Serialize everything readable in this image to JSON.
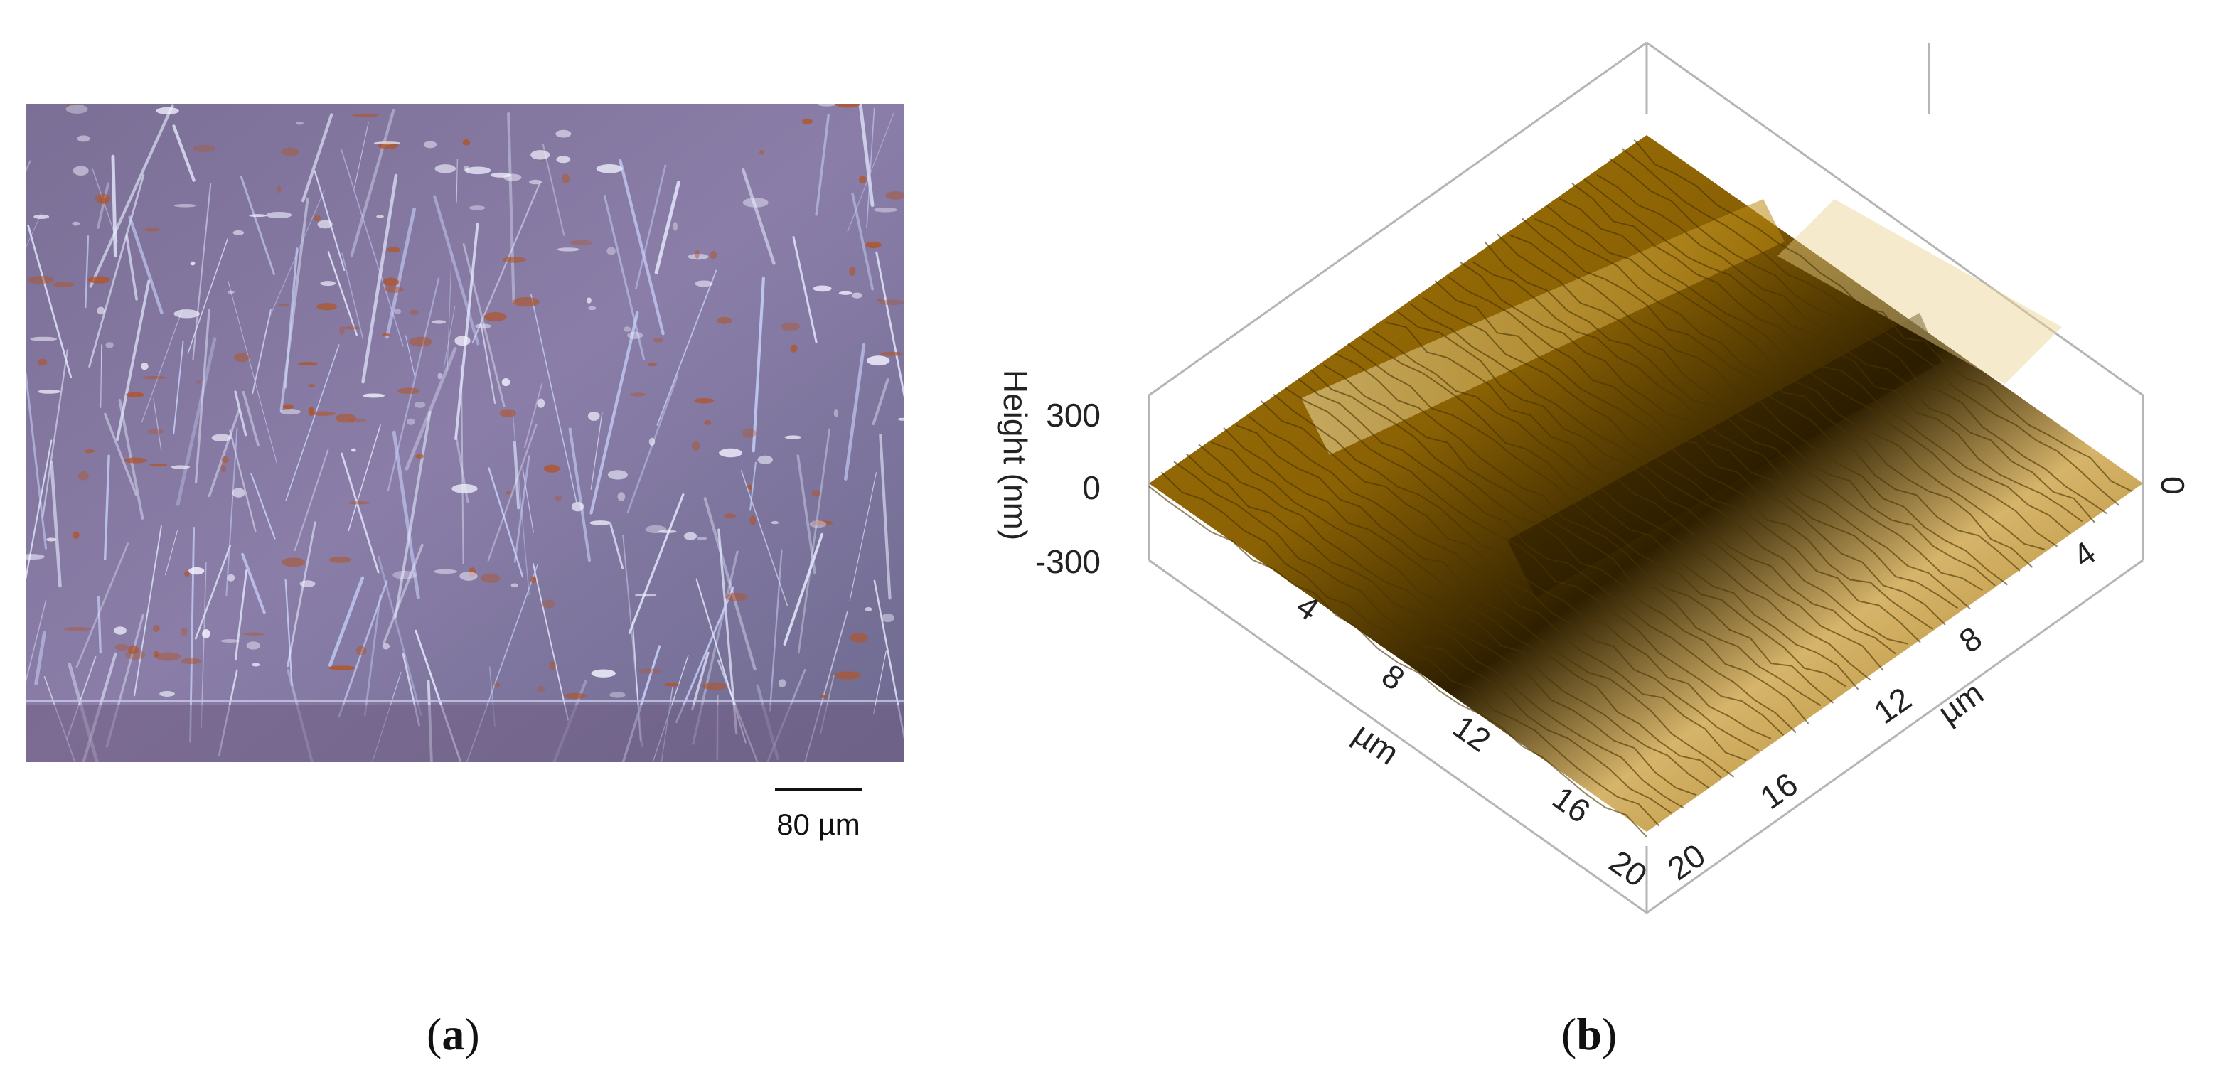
{
  "panel_a": {
    "caption_open": "(",
    "caption_letter": "a",
    "caption_close": ")",
    "scale_bar_label": "80 µm",
    "image_description_icon": "optical-micrograph"
  },
  "panel_b": {
    "caption_open": "(",
    "caption_letter": "b",
    "caption_close": ")",
    "z_axis_label": "Height (nm)",
    "z_ticks": [
      "300",
      "0",
      "-300"
    ],
    "z_tick_right": "0",
    "x_axis_label": "µm",
    "x_ticks": [
      "4",
      "8",
      "12",
      "16",
      "20"
    ],
    "y_axis_label": "µm",
    "y_ticks": [
      "4",
      "8",
      "12",
      "16",
      "20"
    ],
    "surface_color": "#b8860b"
  }
}
